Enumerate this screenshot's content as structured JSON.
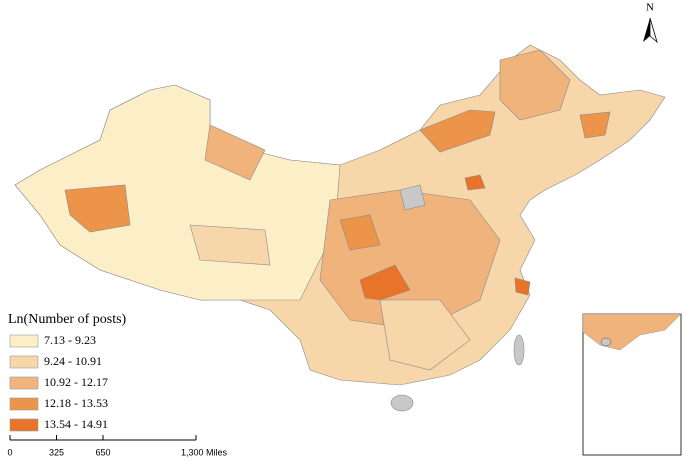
{
  "legend": {
    "title": "Ln(Number of posts)",
    "classes": [
      {
        "label": "7.13 - 9.23",
        "color": "#fcefc8"
      },
      {
        "label": "9.24 - 10.91",
        "color": "#f7d6aa"
      },
      {
        "label": "10.92 - 12.17",
        "color": "#f1b37c"
      },
      {
        "label": "12.18 - 13.53",
        "color": "#ec944a"
      },
      {
        "label": "13.54 - 14.91",
        "color": "#e8742a"
      }
    ]
  },
  "scale_bar": {
    "ticks": [
      0,
      325,
      650,
      {
        "value": 1300,
        "label": "1,300 Miles"
      }
    ]
  },
  "north_arrow": {
    "label": "N"
  }
}
